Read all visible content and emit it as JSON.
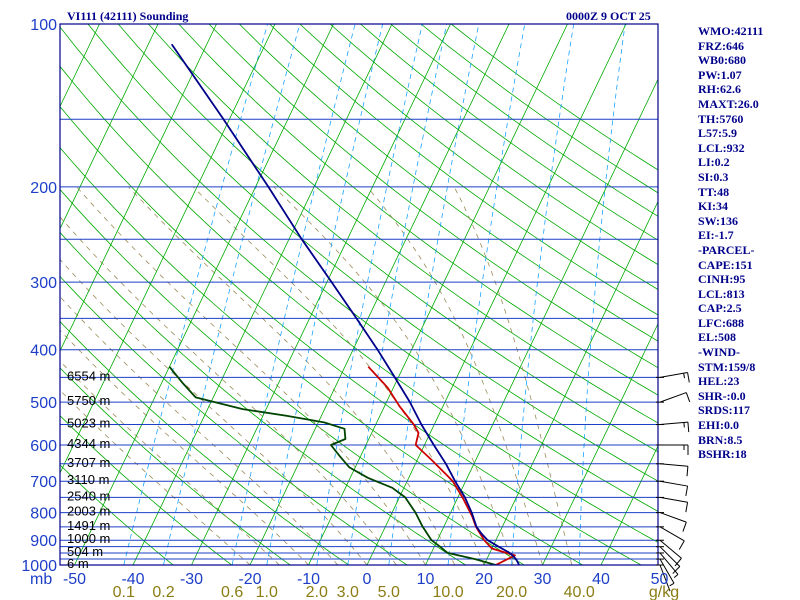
{
  "header": {
    "title": "VI111 (42111) Sounding",
    "datetime": "0000Z  9 OCT 25"
  },
  "indices": [
    "WMO:42111",
    "FRZ:646",
    "WB0:680",
    "PW:1.07",
    "RH:62.6",
    "MAXT:26.0",
    "TH:5760",
    "L57:5.9",
    "LCL:932",
    "LI:0.2",
    "SI:0.3",
    "TT:48",
    "KI:34",
    "SW:136",
    "EI:-1.7",
    "-PARCEL-",
    "CAPE:151",
    "CINH:95",
    "LCL:813",
    "CAP:2.5",
    "LFC:688",
    "EL:508",
    "-WIND-",
    "STM:159/8",
    "HEL:23",
    "SHR-:0.0",
    "SRDS:117",
    "EHI:0.0",
    "BRN:8.5",
    "BSHR:18"
  ],
  "colors": {
    "frame": "#00008b",
    "isobar": "#1d3fc8",
    "isotherm": "#00aa00",
    "dry_adiabat": "#00aa00",
    "moist_adiabat": "#9a8c5a",
    "mixing_ratio": "#1aa3ff",
    "temperature_profile": "#00008b",
    "parcel_trace": "#cc0000",
    "dewpoint_profile": "#004400",
    "label_pressure": "#1d3fc8",
    "label_mixing_ratio": "#8b7d14"
  },
  "chart_data": {
    "type": "line",
    "title": "VI111 (42111) Sounding",
    "subtitle": "0000Z  9 OCT 25",
    "diagram": "skew-T log-P",
    "pressure_axis": {
      "range": [
        1000,
        100
      ],
      "labels": [
        "100",
        "200",
        "300",
        "400",
        "500",
        "600",
        "700",
        "800",
        "900",
        "1000"
      ],
      "unit_label": "mb",
      "isobar_values": [
        100,
        150,
        200,
        250,
        300,
        350,
        400,
        450,
        500,
        550,
        600,
        650,
        700,
        750,
        800,
        850,
        900,
        925,
        950,
        975,
        1000
      ]
    },
    "temperature_axis": {
      "range": [
        -50,
        50
      ],
      "labels": [
        "-50",
        "-40",
        "-30",
        "-20",
        "-10",
        "0",
        "10",
        "20",
        "30",
        "40",
        "50"
      ],
      "isotherm_values": [
        -120,
        -110,
        -100,
        -90,
        -80,
        -70,
        -60,
        -50,
        -40,
        -30,
        -20,
        -10,
        0,
        10,
        20,
        30,
        40,
        50
      ]
    },
    "mixing_ratio_axis": {
      "unit": "g/kg",
      "labels": [
        "0.1",
        "0.2",
        "0.6",
        "1.0",
        "2.0",
        "3.0",
        "5.0",
        "10.0",
        "20.0",
        "40.0"
      ],
      "values": [
        0.1,
        0.2,
        0.6,
        1.0,
        2.0,
        3.0,
        5.0,
        10.0,
        20.0,
        40.0
      ]
    },
    "dry_adiabats_K": [
      240,
      250,
      260,
      270,
      280,
      290,
      300,
      310,
      320,
      330,
      340,
      350,
      360,
      370,
      380,
      390,
      400,
      410,
      420,
      430,
      440,
      450,
      460,
      470
    ],
    "moist_adiabats_C": [
      -20,
      -15,
      -10,
      -5,
      0,
      5,
      10,
      15,
      20,
      25,
      30,
      35
    ],
    "height_labels": [
      {
        "p": 450,
        "text": "6554 m"
      },
      {
        "p": 500,
        "text": "5750 m"
      },
      {
        "p": 550,
        "text": "5023 m"
      },
      {
        "p": 600,
        "text": "4344 m"
      },
      {
        "p": 650,
        "text": "3707 m"
      },
      {
        "p": 700,
        "text": "3110 m"
      },
      {
        "p": 750,
        "text": "2540 m"
      },
      {
        "p": 800,
        "text": "2003 m"
      },
      {
        "p": 850,
        "text": "1491 m"
      },
      {
        "p": 900,
        "text": "1000 m"
      },
      {
        "p": 950,
        "text": "504 m"
      },
      {
        "p": 1000,
        "text": "6 m"
      }
    ],
    "series": [
      {
        "name": "Temperature",
        "points": [
          {
            "p": 1000,
            "t": 26.0
          },
          {
            "p": 975,
            "t": 25.0
          },
          {
            "p": 950,
            "t": 23.4
          },
          {
            "p": 925,
            "t": 21.0
          },
          {
            "p": 900,
            "t": 18.6
          },
          {
            "p": 875,
            "t": 17.0
          },
          {
            "p": 850,
            "t": 15.6
          },
          {
            "p": 800,
            "t": 13.6
          },
          {
            "p": 750,
            "t": 11.2
          },
          {
            "p": 700,
            "t": 8.2
          },
          {
            "p": 650,
            "t": 5.2
          },
          {
            "p": 600,
            "t": 1.6
          },
          {
            "p": 550,
            "t": -2.2
          },
          {
            "p": 500,
            "t": -6.0
          },
          {
            "p": 450,
            "t": -10.6
          },
          {
            "p": 400,
            "t": -15.8
          },
          {
            "p": 350,
            "t": -22.0
          },
          {
            "p": 300,
            "t": -29.2
          },
          {
            "p": 250,
            "t": -37.8
          },
          {
            "p": 200,
            "t": -47.8
          },
          {
            "p": 150,
            "t": -61.0
          },
          {
            "p": 109,
            "t": -76.0
          }
        ]
      },
      {
        "name": "Dewpoint",
        "points": [
          {
            "p": 1000,
            "t": 22.0
          },
          {
            "p": 975,
            "t": 18.0
          },
          {
            "p": 950,
            "t": 12.8
          },
          {
            "p": 925,
            "t": 11.0
          },
          {
            "p": 900,
            "t": 9.0
          },
          {
            "p": 850,
            "t": 6.4
          },
          {
            "p": 800,
            "t": 4.0
          },
          {
            "p": 750,
            "t": 1.0
          },
          {
            "p": 720,
            "t": -2.0
          },
          {
            "p": 690,
            "t": -7.0
          },
          {
            "p": 660,
            "t": -11.0
          },
          {
            "p": 630,
            "t": -13.5
          },
          {
            "p": 600,
            "t": -16.0
          },
          {
            "p": 585,
            "t": -14.0
          },
          {
            "p": 560,
            "t": -15.0
          },
          {
            "p": 545,
            "t": -19.0
          },
          {
            "p": 530,
            "t": -26.0
          },
          {
            "p": 515,
            "t": -34.0
          },
          {
            "p": 490,
            "t": -43.0
          },
          {
            "p": 460,
            "t": -46.5
          },
          {
            "p": 430,
            "t": -50.0
          }
        ]
      },
      {
        "name": "Parcel",
        "points": [
          {
            "p": 1000,
            "t": 22.0
          },
          {
            "p": 960,
            "t": 24.5
          },
          {
            "p": 932,
            "t": 20.0
          },
          {
            "p": 900,
            "t": 18.0
          },
          {
            "p": 850,
            "t": 15.5
          },
          {
            "p": 813,
            "t": 14.0
          },
          {
            "p": 750,
            "t": 10.8
          },
          {
            "p": 700,
            "t": 7.8
          },
          {
            "p": 688,
            "t": 6.8
          },
          {
            "p": 640,
            "t": 2.5
          },
          {
            "p": 600,
            "t": -1.5
          },
          {
            "p": 570,
            "t": -2.0
          },
          {
            "p": 550,
            "t": -3.5
          },
          {
            "p": 508,
            "t": -7.5
          },
          {
            "p": 470,
            "t": -11.0
          },
          {
            "p": 430,
            "t": -16.0
          }
        ]
      }
    ],
    "wind_barbs": [
      {
        "p": 1000,
        "dir": 159,
        "spd": 3
      },
      {
        "p": 975,
        "dir": 150,
        "spd": 5
      },
      {
        "p": 950,
        "dir": 140,
        "spd": 8
      },
      {
        "p": 925,
        "dir": 135,
        "spd": 10
      },
      {
        "p": 900,
        "dir": 130,
        "spd": 12
      },
      {
        "p": 850,
        "dir": 120,
        "spd": 12
      },
      {
        "p": 800,
        "dir": 110,
        "spd": 10
      },
      {
        "p": 750,
        "dir": 100,
        "spd": 10
      },
      {
        "p": 700,
        "dir": 100,
        "spd": 10
      },
      {
        "p": 650,
        "dir": 95,
        "spd": 12
      },
      {
        "p": 600,
        "dir": 90,
        "spd": 15
      },
      {
        "p": 550,
        "dir": 85,
        "spd": 15
      },
      {
        "p": 500,
        "dir": 70,
        "spd": 12
      },
      {
        "p": 450,
        "dir": 80,
        "spd": 15
      }
    ]
  }
}
